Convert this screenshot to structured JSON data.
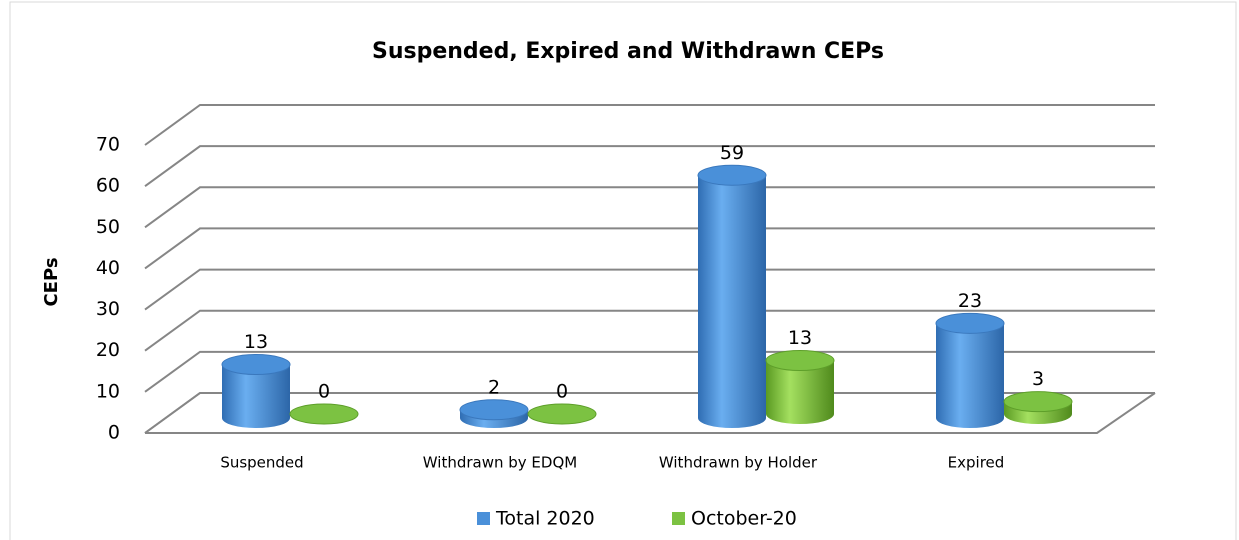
{
  "chart_data": {
    "type": "bar",
    "title": "Suspended, Expired and Withdrawn CEPs",
    "y_label": "CEPs",
    "categories": [
      "Suspended",
      "Withdrawn by EDQM",
      "Withdrawn by Holder",
      "Expired"
    ],
    "series": [
      {
        "name": "Total 2020",
        "color": "#4a90d9",
        "values": [
          13,
          2,
          59,
          23
        ]
      },
      {
        "name": "October-20",
        "color": "#7cc242",
        "values": [
          0,
          0,
          13,
          3
        ]
      }
    ],
    "ylim": [
      0,
      70
    ],
    "yticks": [
      0,
      10,
      20,
      30,
      40,
      50,
      60,
      70
    ],
    "grid": true,
    "legend": "bottom"
  }
}
